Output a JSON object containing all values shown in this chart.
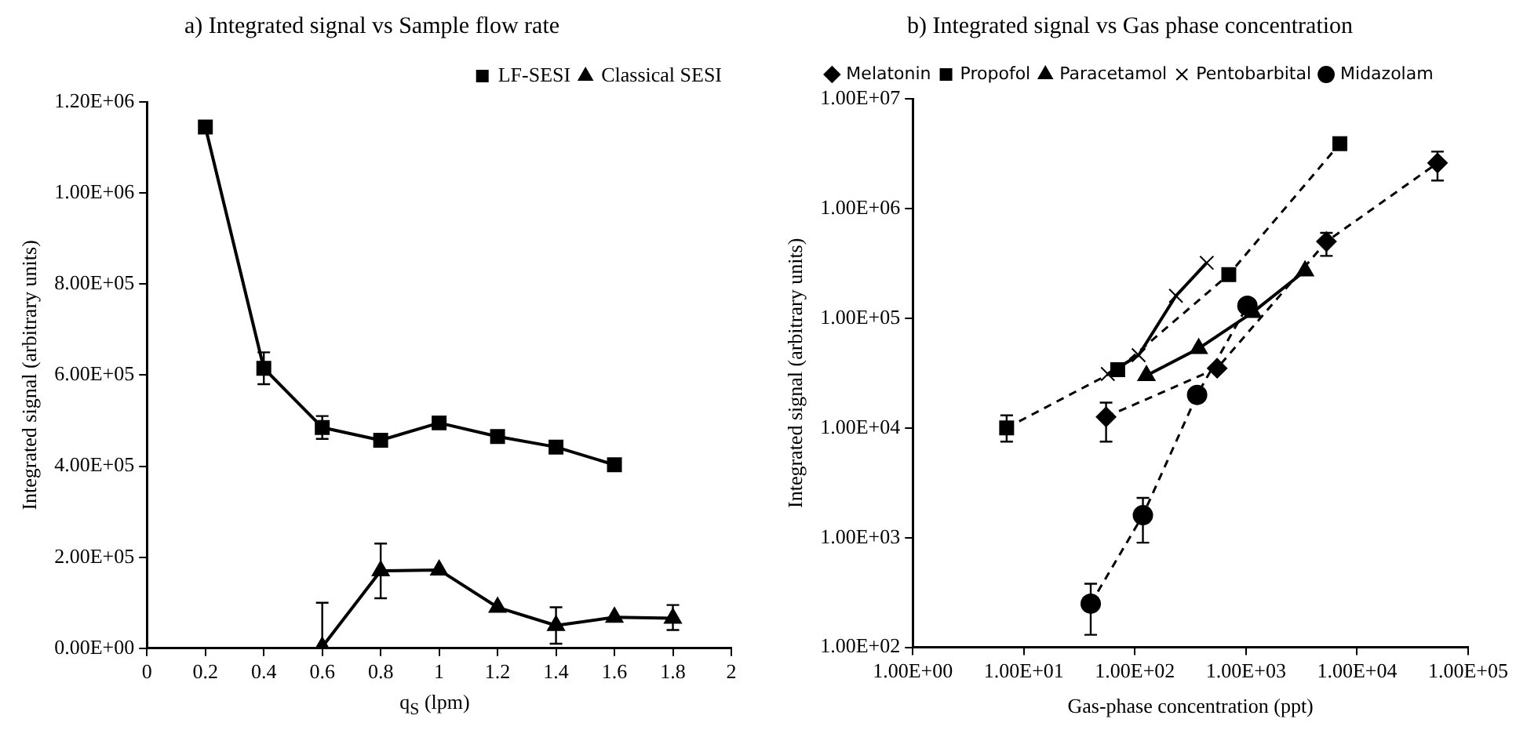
{
  "chart_data": [
    {
      "type": "line",
      "title": "a) Integrated signal vs Sample flow rate",
      "xlabel": "q$_{S}$ (lpm)",
      "ylabel": "Integrated signal (arbitrary units)",
      "xlim": [
        0,
        2
      ],
      "xticks": [
        0,
        0.2,
        0.4,
        0.6,
        0.8,
        1,
        1.2,
        1.4,
        1.6,
        1.8,
        2
      ],
      "ylim": [
        0,
        1200000
      ],
      "yticks": [
        {
          "value": 0,
          "label": "0.00E+00"
        },
        {
          "value": 200000,
          "label": "2.00E+05"
        },
        {
          "value": 400000,
          "label": "4.00E+05"
        },
        {
          "value": 600000,
          "label": "6.00E+05"
        },
        {
          "value": 800000,
          "label": "8.00E+05"
        },
        {
          "value": 1000000,
          "label": "1.00E+06"
        },
        {
          "value": 1200000,
          "label": "1.20E+06"
        }
      ],
      "grid": false,
      "legend": "top right",
      "line_style": "solid",
      "series": [
        {
          "name": "LF-SESI",
          "color": "#000000",
          "marker": "square",
          "x": [
            0.2,
            0.4,
            0.6,
            0.8,
            1,
            1.2,
            1.4,
            1.6
          ],
          "values": [
            1145000,
            615000,
            485000,
            457000,
            495000,
            465000,
            442000,
            403000
          ],
          "errors": [
            null,
            [
              580000,
              650000
            ],
            [
              460000,
              510000
            ],
            null,
            null,
            null,
            null,
            null
          ]
        },
        {
          "name": "Classical SESI",
          "color": "#000000",
          "marker": "triangle",
          "x": [
            0.6,
            0.8,
            1,
            1.2,
            1.4,
            1.6,
            1.8
          ],
          "values": [
            3000,
            170000,
            172000,
            90000,
            50000,
            68000,
            66000
          ],
          "errors": [
            [
              0,
              100000
            ],
            [
              110000,
              230000
            ],
            null,
            null,
            [
              10000,
              90000
            ],
            null,
            [
              40000,
              95000
            ]
          ]
        }
      ]
    },
    {
      "type": "line",
      "title": "b) Integrated signal vs Gas phase concentration",
      "xlabel": "Gas-phase concentration (ppt)",
      "ylabel": "Integrated signal (arbitrary units)",
      "log": "xy",
      "xlim": [
        1,
        100000
      ],
      "xticks": [
        {
          "value": 1,
          "label": "1.00E+00"
        },
        {
          "value": 10,
          "label": "1.00E+01"
        },
        {
          "value": 100,
          "label": "1.00E+02"
        },
        {
          "value": 1000,
          "label": "1.00E+03"
        },
        {
          "value": 10000,
          "label": "1.00E+04"
        },
        {
          "value": 100000,
          "label": "1.00E+05"
        }
      ],
      "ylim": [
        100,
        10000000
      ],
      "yticks": [
        {
          "value": 100,
          "label": "1.00E+02"
        },
        {
          "value": 1000,
          "label": "1.00E+03"
        },
        {
          "value": 10000,
          "label": "1.00E+04"
        },
        {
          "value": 100000,
          "label": "1.00E+05"
        },
        {
          "value": 1000000,
          "label": "1.00E+06"
        },
        {
          "value": 10000000,
          "label": "1.00E+07"
        }
      ],
      "grid": false,
      "legend": "top",
      "series": [
        {
          "name": "Melatonin",
          "color": "#000000",
          "marker": "diamond",
          "line_style": "dashed",
          "x": [
            55,
            550,
            5300,
            53000
          ],
          "values": [
            12600,
            35000,
            500000,
            2600000
          ],
          "errors": [
            [
              7500,
              17000
            ],
            null,
            [
              370000,
              600000
            ],
            [
              1800000,
              3300000
            ]
          ]
        },
        {
          "name": "Propofol",
          "color": "#000000",
          "marker": "square",
          "line_style": "dashed",
          "x": [
            7,
            70,
            700,
            7000
          ],
          "values": [
            10000,
            34000,
            250000,
            3900000
          ],
          "errors": [
            [
              7500,
              13000
            ],
            null,
            null,
            null
          ]
        },
        {
          "name": "Paracetamol",
          "color": "#000000",
          "marker": "triangle",
          "line_style": "solid",
          "x": [
            127,
            375,
            1150,
            3400
          ],
          "values": [
            30000,
            53000,
            113000,
            270000
          ]
        },
        {
          "name": "Pentobarbital",
          "color": "#000000",
          "marker": "cross",
          "line_style": "solid",
          "x": [
            57,
            108,
            234,
            443
          ],
          "values": [
            31000,
            46000,
            160000,
            320000
          ]
        },
        {
          "name": "Midazolam",
          "color": "#000000",
          "marker": "circle",
          "line_style": "dashed",
          "x": [
            40,
            118,
            363,
            1030
          ],
          "values": [
            250,
            1600,
            20000,
            130000
          ],
          "errors": [
            [
              130,
              380
            ],
            [
              900,
              2300
            ],
            null,
            null
          ]
        }
      ]
    }
  ]
}
